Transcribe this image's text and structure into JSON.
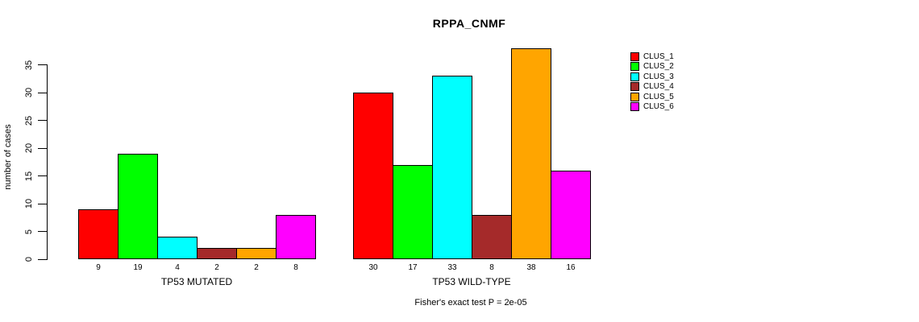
{
  "chart_data": {
    "type": "bar",
    "title": "RPPA_CNMF",
    "ylabel": "number of cases",
    "xlabel": "",
    "annotation": "Fisher's exact test P = 2e-05",
    "categories": [
      "TP53 MUTATED",
      "TP53 WILD-TYPE"
    ],
    "series": [
      {
        "name": "CLUS_1",
        "color": "#FF0000",
        "values": [
          9,
          30
        ]
      },
      {
        "name": "CLUS_2",
        "color": "#00FF00",
        "values": [
          19,
          17
        ]
      },
      {
        "name": "CLUS_3",
        "color": "#00FFFF",
        "values": [
          4,
          33
        ]
      },
      {
        "name": "CLUS_4",
        "color": "#A52A2A",
        "values": [
          2,
          8
        ]
      },
      {
        "name": "CLUS_5",
        "color": "#FFA500",
        "values": [
          2,
          38
        ]
      },
      {
        "name": "CLUS_6",
        "color": "#FF00FF",
        "values": [
          8,
          16
        ]
      }
    ],
    "yticks": [
      0,
      5,
      10,
      15,
      20,
      25,
      30,
      35
    ],
    "ylim": [
      0,
      38
    ],
    "grid": false,
    "legend_position": "top-right",
    "bar_value_labels": true
  }
}
